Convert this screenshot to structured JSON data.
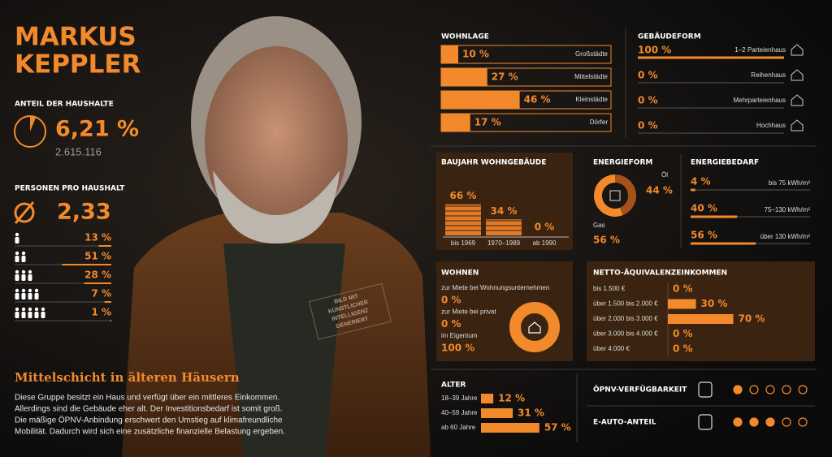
{
  "person": {
    "first_name": "MARKUS",
    "last_name": "KEPPLER"
  },
  "households": {
    "title": "ANTEIL DER HAUSHALTE",
    "share": {
      "value": 6.21,
      "label": "6,21 %"
    },
    "count": "2.615.116"
  },
  "persons": {
    "title": "PERSONEN PRO HAUSHALT",
    "average": "2,33",
    "rows": [
      {
        "value": 13,
        "label": "13 %"
      },
      {
        "value": 51,
        "label": "51 %"
      },
      {
        "value": 28,
        "label": "28 %"
      },
      {
        "value": 7,
        "label": "7 %"
      },
      {
        "value": 1,
        "label": "1 %"
      }
    ]
  },
  "photo_badge": [
    "BILD MIT",
    "KÜNSTLICHER",
    "INTELLIGENZ",
    "GENERIERT"
  ],
  "summary": {
    "heading": "Mittelschicht in älteren Häusern",
    "lines": [
      "Diese Gruppe besitzt ein Haus und verfügt über ein mittleres Einkommen.",
      "Allerdings sind die Gebäude eher alt. Der Investitionsbedarf ist somit groß.",
      "Die mäßige ÖPNV-Anbindung erschwert den Umstieg auf klimafreundliche",
      "Mobilität. Dadurch wird sich eine zusätzliche finanzielle Belastung ergeben."
    ]
  },
  "wohnlage": {
    "title": "WOHNLAGE",
    "rows": [
      {
        "share": {
          "value": 10,
          "label": "10 %"
        },
        "label": "Großstädte"
      },
      {
        "share": {
          "value": 27,
          "label": "27 %"
        },
        "label": "Mittelstädte"
      },
      {
        "share": {
          "value": 46,
          "label": "46 %"
        },
        "label": "Kleinstädte"
      },
      {
        "share": {
          "value": 17,
          "label": "17 %"
        },
        "label": "Dörfer"
      }
    ]
  },
  "gebaeudeform": {
    "title": "GEBÄUDEFORM",
    "rows": [
      {
        "share": {
          "value": 100,
          "label": "100 %"
        },
        "label": "1–2 Parteienhaus"
      },
      {
        "share": {
          "value": 0,
          "label": "0 %"
        },
        "label": "Reihenhaus"
      },
      {
        "share": {
          "value": 0,
          "label": "0 %"
        },
        "label": "Mehrparteienhaus"
      },
      {
        "share": {
          "value": 0,
          "label": "0 %"
        },
        "label": "Hochhaus"
      }
    ]
  },
  "baujahr": {
    "title": "BAUJAHR WOHNGEBÄUDE",
    "rows": [
      {
        "share": {
          "value": 66,
          "label": "66 %"
        },
        "label": "bis 1969"
      },
      {
        "share": {
          "value": 34,
          "label": "34 %"
        },
        "label": "1970–1989"
      },
      {
        "share": {
          "value": 0,
          "label": "0 %"
        },
        "label": "ab 1990"
      }
    ]
  },
  "energieform": {
    "title": "ENERGIEFORM",
    "rows": [
      {
        "share": {
          "value": 44,
          "label": "44 %"
        },
        "label": "Öl"
      },
      {
        "share": {
          "value": 56,
          "label": "56 %"
        },
        "label": "Gas"
      }
    ]
  },
  "energiebedarf": {
    "title": "ENERGIEBEDARF",
    "rows": [
      {
        "share": {
          "value": 4,
          "label": "4 %"
        },
        "label": "bis 75 kWh/m²"
      },
      {
        "share": {
          "value": 40,
          "label": "40 %"
        },
        "label": "75–130 kWh/m²"
      },
      {
        "share": {
          "value": 56,
          "label": "56 %"
        },
        "label": "über 130 kWh/m²"
      }
    ]
  },
  "wohnen": {
    "title": "WOHNEN",
    "rows": [
      {
        "share": {
          "value": 0,
          "label": "0 %"
        },
        "label": "zur Miete bei Wohnungsunternehmen"
      },
      {
        "share": {
          "value": 0,
          "label": "0 %"
        },
        "label": "zur Miete bei privat"
      },
      {
        "share": {
          "value": 100,
          "label": "100 %"
        },
        "label": "im Eigentum"
      }
    ]
  },
  "einkommen": {
    "title": "NETTO-ÄQUIVALENZEINKOMMEN",
    "rows": [
      {
        "share": {
          "value": 0,
          "label": "0 %"
        },
        "label": "bis 1.500 €"
      },
      {
        "share": {
          "value": 30,
          "label": "30 %"
        },
        "label": "über 1.500 bis 2.000 €"
      },
      {
        "share": {
          "value": 70,
          "label": "70 %"
        },
        "label": "über 2.000 bis 3.000 €"
      },
      {
        "share": {
          "value": 0,
          "label": "0 %"
        },
        "label": "über 3.000 bis 4.000 €"
      },
      {
        "share": {
          "value": 0,
          "label": "0 %"
        },
        "label": "über 4.000 €"
      }
    ]
  },
  "alter": {
    "title": "ALTER",
    "rows": [
      {
        "share": {
          "value": 12,
          "label": "12 %"
        },
        "label": "18–39 Jahre"
      },
      {
        "share": {
          "value": 31,
          "label": "31 %"
        },
        "label": "40–59 Jahre"
      },
      {
        "share": {
          "value": 57,
          "label": "57 %"
        },
        "label": "ab 60 Jahre"
      }
    ]
  },
  "mobility": [
    {
      "label": "ÖPNV-VERFÜGBARKEIT",
      "rating": 1
    },
    {
      "label": "E-AUTO-ANTEIL",
      "rating": 3
    }
  ]
}
